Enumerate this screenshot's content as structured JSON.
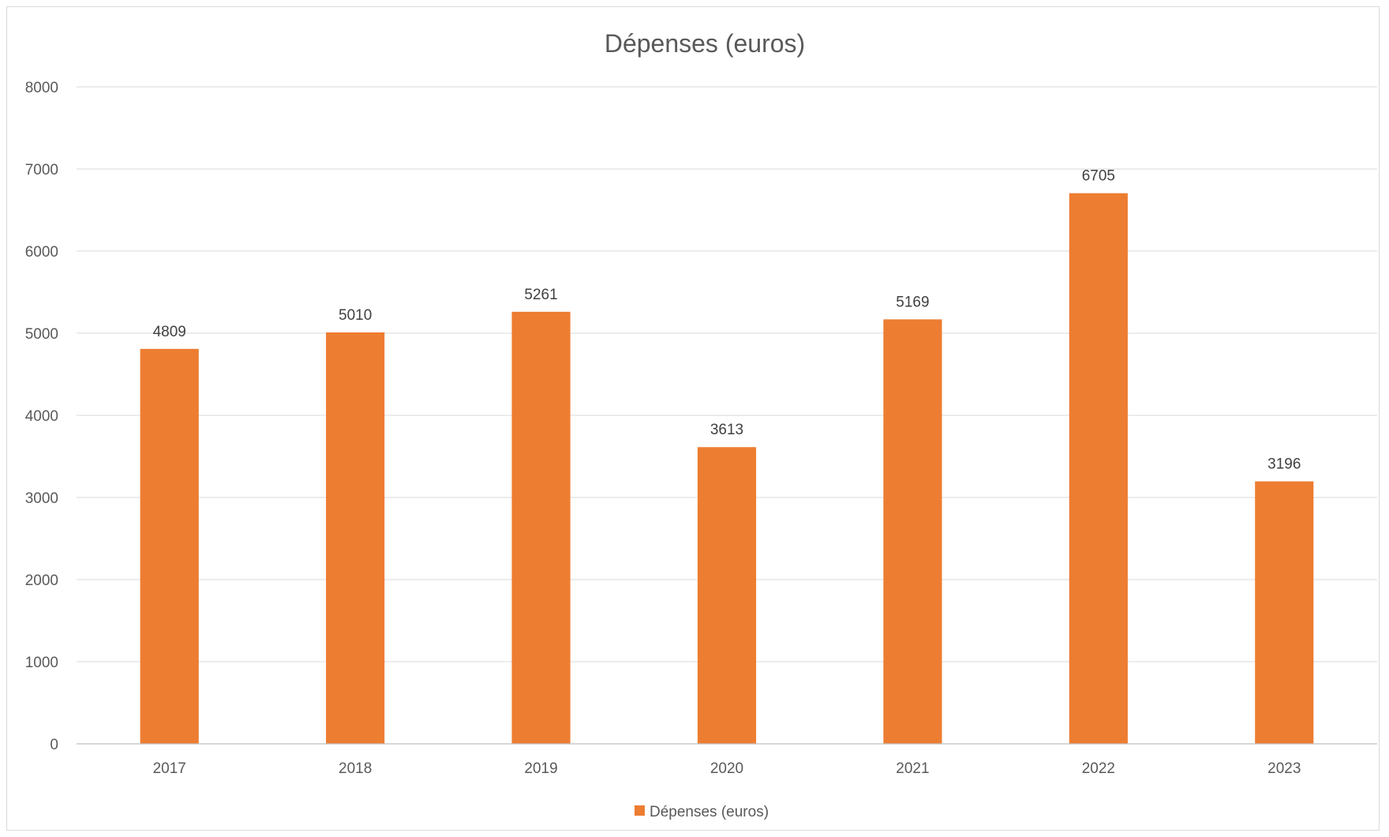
{
  "chart_data": {
    "type": "bar",
    "title": "Dépenses (euros)",
    "categories": [
      "2017",
      "2018",
      "2019",
      "2020",
      "2021",
      "2022",
      "2023"
    ],
    "series": [
      {
        "name": "Dépenses (euros)",
        "values": [
          4809,
          5010,
          5261,
          3613,
          5169,
          6705,
          3196
        ],
        "data_labels": [
          "4809",
          "5010",
          "5261",
          "3613",
          "5169",
          "6705",
          "3196"
        ],
        "color": "#ED7D31"
      }
    ],
    "y_ticks": [
      "0",
      "1000",
      "2000",
      "3000",
      "4000",
      "5000",
      "6000",
      "7000",
      "8000"
    ],
    "ylim": [
      0,
      8000
    ],
    "xlabel": "",
    "ylabel": "",
    "grid": true,
    "legend": "bottom"
  }
}
